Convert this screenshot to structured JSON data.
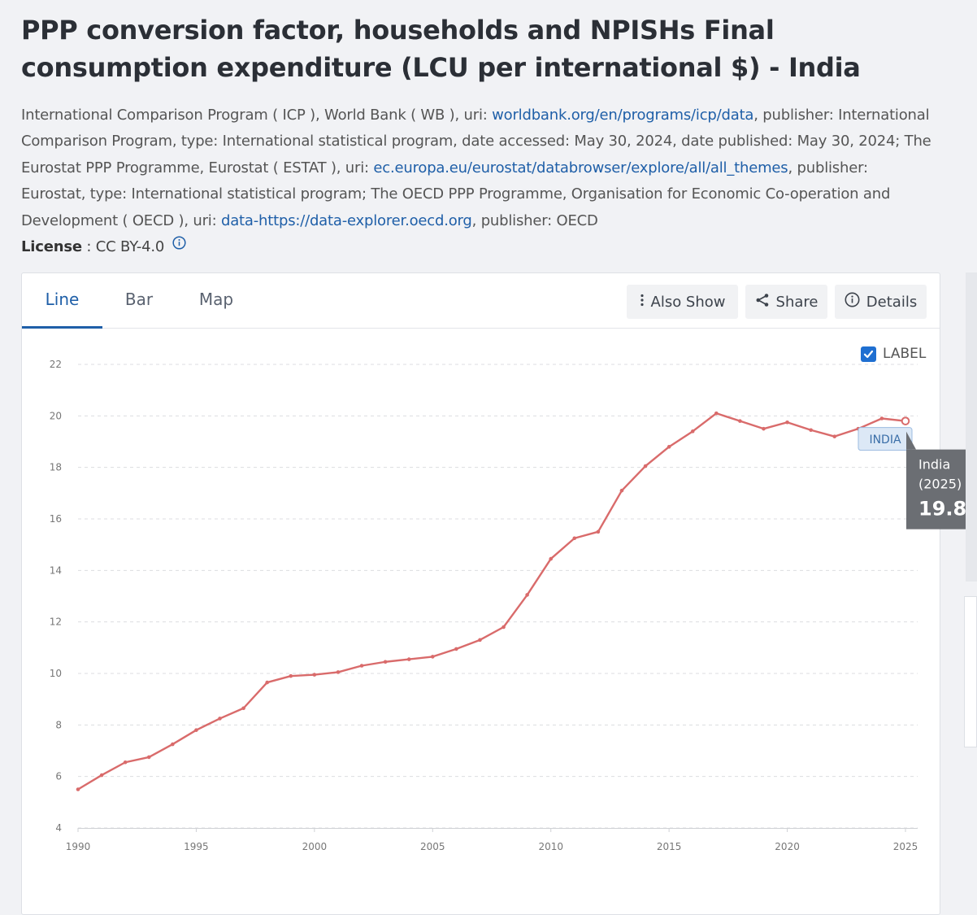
{
  "page": {
    "title": "PPP conversion factor, households and NPISHs Final consumption expenditure (LCU per international $) - India",
    "source": {
      "p1": "International Comparison Program ( ICP ), World Bank ( WB ), uri: ",
      "link1": "worldbank.org/en/programs/icp/data",
      "p2": ", publisher: International Comparison Program, type: International statistical program, date accessed: May 30, 2024, date published: May 30, 2024; The Eurostat PPP Programme, Eurostat ( ESTAT ), uri: ",
      "link2": "ec.europa.eu/eurostat/databrowser/explore/all/all_themes",
      "p3": ", publisher: Eurostat, type: International statistical program; The OECD PPP Programme, Organisation for Economic Co-operation and Development ( OECD ), uri: ",
      "link3": "data-https://data-explorer.oecd.org",
      "p4": ", publisher: OECD"
    },
    "license": {
      "label": "License",
      "sep": " : ",
      "value": "CC BY-4.0"
    }
  },
  "tabs": [
    "Line",
    "Bar",
    "Map"
  ],
  "active_tab": "Line",
  "toolbar": {
    "also_show": "Also Show",
    "share": "Share",
    "details": "Details"
  },
  "label_toggle": {
    "text": "LABEL",
    "checked": true
  },
  "colors": {
    "series": "#d96b6b",
    "accent": "#1f5fa8",
    "tooltip_bg": "#6b6e73",
    "series_label_bg": "#dce8f6"
  },
  "tooltip": {
    "name": "India",
    "year": "(2025)",
    "value": "19.8"
  },
  "chart_data": {
    "type": "line",
    "xlabel": "",
    "ylabel": "",
    "xlim": [
      1990,
      2025
    ],
    "ylim": [
      4,
      22
    ],
    "x_ticks": [
      1990,
      1995,
      2000,
      2005,
      2010,
      2015,
      2020,
      2025
    ],
    "y_ticks": [
      4,
      6,
      8,
      10,
      12,
      14,
      16,
      18,
      20,
      22
    ],
    "grid": "horizontal dashed",
    "series": [
      {
        "name": "INDIA",
        "x": [
          1990,
          1991,
          1992,
          1993,
          1994,
          1995,
          1996,
          1997,
          1998,
          1999,
          2000,
          2001,
          2002,
          2003,
          2004,
          2005,
          2006,
          2007,
          2008,
          2009,
          2010,
          2011,
          2012,
          2013,
          2014,
          2015,
          2016,
          2017,
          2018,
          2019,
          2020,
          2021,
          2022,
          2023,
          2024,
          2025
        ],
        "y": [
          5.5,
          6.05,
          6.55,
          6.75,
          7.25,
          7.8,
          8.25,
          8.65,
          9.65,
          9.9,
          9.95,
          10.05,
          10.3,
          10.45,
          10.55,
          10.65,
          10.95,
          11.3,
          11.8,
          13.05,
          14.45,
          15.25,
          15.5,
          17.1,
          18.05,
          18.8,
          19.4,
          20.1,
          19.8,
          19.5,
          19.75,
          19.45,
          19.2,
          19.5,
          19.9,
          19.8
        ]
      }
    ]
  }
}
